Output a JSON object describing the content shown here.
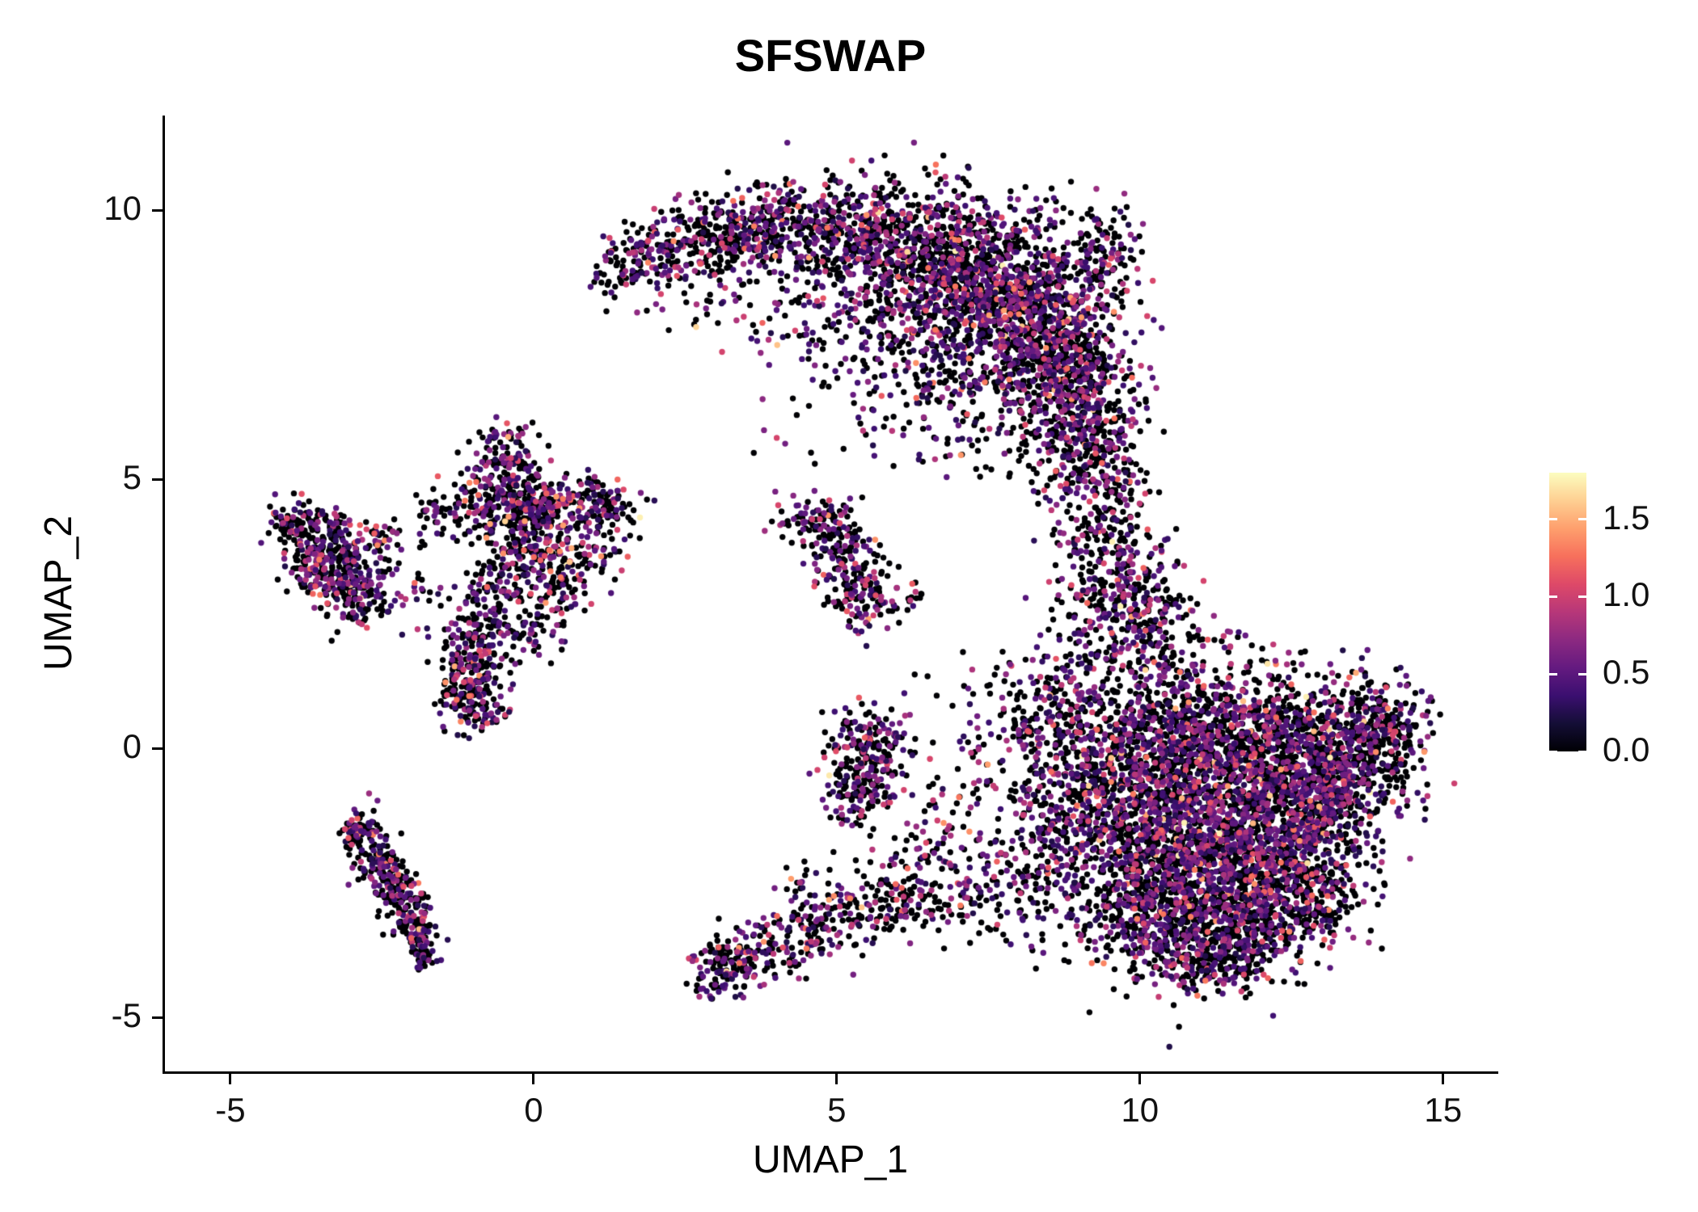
{
  "title": "SFSWAP",
  "colors": {
    "background": "#ffffff",
    "axis": "#000000",
    "text": "#111111"
  },
  "chart_data": {
    "type": "scatter",
    "title": "SFSWAP",
    "xlabel": "UMAP_1",
    "ylabel": "UMAP_2",
    "xlim": [
      -6.08,
      15.87
    ],
    "ylim": [
      -6.0,
      11.76
    ],
    "x_ticks": [
      -5,
      0,
      5,
      10,
      15
    ],
    "y_ticks": [
      -5,
      0,
      5,
      10
    ],
    "grid": false,
    "legend": {
      "position": "right",
      "vmin": 0.0,
      "vmax": 1.8,
      "ticks": [
        {
          "label": "1.5",
          "value": 1.5
        },
        {
          "label": "1.0",
          "value": 1.0
        },
        {
          "label": "0.5",
          "value": 0.5
        },
        {
          "label": "0.0",
          "value": 0.0
        }
      ]
    },
    "colormap": {
      "name": "magma",
      "stops": [
        {
          "t": 0.0,
          "hex": "#000004"
        },
        {
          "t": 0.1,
          "hex": "#140e36"
        },
        {
          "t": 0.2,
          "hex": "#3b0f70"
        },
        {
          "t": 0.3,
          "hex": "#641a80"
        },
        {
          "t": 0.4,
          "hex": "#8c2981"
        },
        {
          "t": 0.5,
          "hex": "#b73779"
        },
        {
          "t": 0.6,
          "hex": "#de4968"
        },
        {
          "t": 0.7,
          "hex": "#f7705c"
        },
        {
          "t": 0.8,
          "hex": "#fe9f6d"
        },
        {
          "t": 0.9,
          "hex": "#fecf92"
        },
        {
          "t": 1.0,
          "hex": "#fcfdbf"
        }
      ]
    },
    "point": {
      "radius": 3.7,
      "seed": 42
    },
    "expression": {
      "p_zero": 0.55,
      "base": 0.22,
      "spread": 0.5,
      "max": 1.75
    },
    "clusters_format": [
      "cx",
      "cy",
      "sx",
      "sy",
      "n"
    ],
    "clusters": [
      [
        1.4,
        8.9,
        0.25,
        0.35,
        60
      ],
      [
        2.0,
        9.2,
        0.3,
        0.35,
        90
      ],
      [
        2.7,
        9.4,
        0.35,
        0.4,
        120
      ],
      [
        3.4,
        9.6,
        0.4,
        0.4,
        140
      ],
      [
        4.1,
        9.7,
        0.4,
        0.45,
        150
      ],
      [
        4.9,
        9.6,
        0.45,
        0.5,
        170
      ],
      [
        5.6,
        9.4,
        0.5,
        0.55,
        220
      ],
      [
        6.3,
        9.0,
        0.6,
        0.7,
        380
      ],
      [
        7.1,
        8.8,
        0.6,
        0.75,
        450
      ],
      [
        7.9,
        8.4,
        0.6,
        0.8,
        480
      ],
      [
        8.5,
        7.7,
        0.55,
        0.8,
        420
      ],
      [
        8.9,
        6.9,
        0.5,
        0.75,
        350
      ],
      [
        9.1,
        6.1,
        0.4,
        0.6,
        220
      ],
      [
        9.5,
        9.2,
        0.3,
        0.5,
        110
      ],
      [
        3.5,
        8.3,
        0.8,
        0.5,
        60
      ],
      [
        5.0,
        7.9,
        0.8,
        0.6,
        80
      ],
      [
        6.3,
        7.3,
        0.7,
        0.6,
        120
      ],
      [
        7.3,
        6.7,
        0.6,
        0.5,
        100
      ],
      [
        9.3,
        5.0,
        0.35,
        0.5,
        70
      ],
      [
        9.5,
        4.2,
        0.4,
        0.5,
        90
      ],
      [
        9.6,
        3.4,
        0.45,
        0.5,
        110
      ],
      [
        9.7,
        2.6,
        0.5,
        0.5,
        130
      ],
      [
        8.8,
        4.6,
        0.3,
        0.7,
        40
      ],
      [
        10.0,
        2.4,
        0.6,
        0.5,
        100
      ],
      [
        10.2,
        1.6,
        0.8,
        0.5,
        150
      ],
      [
        10.0,
        0.3,
        0.8,
        0.7,
        300
      ],
      [
        11.0,
        0.2,
        0.8,
        0.7,
        350
      ],
      [
        12.0,
        0.3,
        0.8,
        0.6,
        320
      ],
      [
        12.9,
        0.2,
        0.7,
        0.6,
        280
      ],
      [
        13.7,
        0.3,
        0.5,
        0.5,
        180
      ],
      [
        14.2,
        0.4,
        0.3,
        0.4,
        90
      ],
      [
        9.5,
        -0.8,
        0.7,
        0.7,
        250
      ],
      [
        10.4,
        -1.0,
        0.8,
        0.8,
        400
      ],
      [
        11.4,
        -1.0,
        0.8,
        0.8,
        420
      ],
      [
        12.4,
        -1.0,
        0.8,
        0.7,
        380
      ],
      [
        13.3,
        -0.8,
        0.6,
        0.6,
        250
      ],
      [
        9.8,
        -2.2,
        0.7,
        0.7,
        300
      ],
      [
        10.8,
        -2.3,
        0.8,
        0.7,
        380
      ],
      [
        11.8,
        -2.3,
        0.8,
        0.7,
        350
      ],
      [
        12.7,
        -2.0,
        0.6,
        0.6,
        250
      ],
      [
        10.3,
        -3.3,
        0.6,
        0.5,
        200
      ],
      [
        11.2,
        -3.4,
        0.7,
        0.5,
        220
      ],
      [
        12.0,
        -3.2,
        0.6,
        0.5,
        180
      ],
      [
        12.8,
        -2.9,
        0.4,
        0.4,
        100
      ],
      [
        10.8,
        -4.0,
        0.5,
        0.3,
        90
      ],
      [
        11.6,
        -3.9,
        0.4,
        0.3,
        70
      ],
      [
        8.7,
        -1.5,
        0.5,
        0.8,
        120
      ],
      [
        8.3,
        -2.3,
        0.4,
        0.6,
        80
      ],
      [
        8.0,
        0.5,
        0.5,
        0.6,
        90
      ],
      [
        8.6,
        1.0,
        0.5,
        0.5,
        90
      ],
      [
        8.9,
        0.0,
        0.4,
        0.5,
        60
      ],
      [
        7.3,
        -0.5,
        0.6,
        0.8,
        60
      ],
      [
        7.0,
        -1.8,
        0.5,
        0.6,
        50
      ],
      [
        7.8,
        -2.8,
        0.5,
        0.4,
        45
      ],
      [
        6.7,
        -2.7,
        0.5,
        0.4,
        50
      ],
      [
        6.0,
        -1.9,
        0.5,
        0.5,
        35
      ],
      [
        5.4,
        -0.3,
        0.35,
        0.5,
        150
      ],
      [
        5.7,
        0.1,
        0.3,
        0.35,
        80
      ],
      [
        5.3,
        -0.9,
        0.3,
        0.3,
        60
      ],
      [
        3.1,
        -4.1,
        0.25,
        0.3,
        100
      ],
      [
        3.6,
        -3.9,
        0.3,
        0.25,
        70
      ],
      [
        4.2,
        -3.6,
        0.35,
        0.3,
        70
      ],
      [
        4.9,
        -3.3,
        0.35,
        0.3,
        60
      ],
      [
        5.6,
        -3.0,
        0.35,
        0.3,
        60
      ],
      [
        6.2,
        -2.8,
        0.3,
        0.25,
        50
      ],
      [
        4.5,
        -2.9,
        0.4,
        0.3,
        40
      ],
      [
        5.2,
        3.2,
        0.3,
        0.45,
        130
      ],
      [
        5.5,
        2.7,
        0.25,
        0.3,
        60
      ],
      [
        4.9,
        4.0,
        0.3,
        0.25,
        50
      ],
      [
        4.4,
        4.2,
        0.3,
        0.2,
        40
      ],
      [
        5.0,
        4.35,
        0.2,
        0.15,
        30
      ],
      [
        6.3,
        2.9,
        0.15,
        0.15,
        12
      ],
      [
        -3.9,
        4.2,
        0.25,
        0.25,
        80
      ],
      [
        -3.5,
        4.0,
        0.3,
        0.3,
        90
      ],
      [
        -3.2,
        3.5,
        0.3,
        0.35,
        110
      ],
      [
        -3.0,
        3.0,
        0.3,
        0.3,
        90
      ],
      [
        -2.8,
        2.7,
        0.25,
        0.2,
        60
      ],
      [
        -3.6,
        3.3,
        0.25,
        0.3,
        60
      ],
      [
        -2.5,
        3.9,
        0.2,
        0.25,
        30
      ],
      [
        -0.6,
        4.6,
        0.35,
        0.35,
        130
      ],
      [
        -0.1,
        4.4,
        0.35,
        0.35,
        120
      ],
      [
        0.6,
        4.5,
        0.4,
        0.3,
        110
      ],
      [
        1.2,
        4.5,
        0.35,
        0.25,
        80
      ],
      [
        -0.5,
        5.2,
        0.3,
        0.3,
        70
      ],
      [
        -0.4,
        5.7,
        0.2,
        0.25,
        40
      ],
      [
        0.2,
        3.8,
        0.4,
        0.4,
        90
      ],
      [
        -0.3,
        3.4,
        0.35,
        0.35,
        80
      ],
      [
        0.3,
        3.0,
        0.35,
        0.35,
        80
      ],
      [
        -0.6,
        2.9,
        0.3,
        0.3,
        60
      ],
      [
        -0.8,
        2.3,
        0.3,
        0.35,
        70
      ],
      [
        -1.0,
        1.7,
        0.28,
        0.3,
        80
      ],
      [
        -1.1,
        1.2,
        0.25,
        0.3,
        90
      ],
      [
        -1.0,
        0.8,
        0.3,
        0.25,
        80
      ],
      [
        0.0,
        2.2,
        0.3,
        0.3,
        50
      ],
      [
        1.1,
        3.6,
        0.3,
        0.3,
        40
      ],
      [
        -1.3,
        4.3,
        0.3,
        0.3,
        40
      ],
      [
        -1.7,
        4.5,
        0.15,
        0.2,
        20
      ],
      [
        -2.0,
        3.1,
        0.3,
        0.4,
        25
      ],
      [
        -2.8,
        -1.5,
        0.15,
        0.2,
        40
      ],
      [
        -2.6,
        -1.9,
        0.2,
        0.25,
        60
      ],
      [
        -2.4,
        -2.3,
        0.2,
        0.25,
        70
      ],
      [
        -2.2,
        -2.7,
        0.18,
        0.25,
        60
      ],
      [
        -2.0,
        -3.1,
        0.15,
        0.25,
        60
      ],
      [
        -1.9,
        -3.5,
        0.12,
        0.2,
        50
      ],
      [
        -1.8,
        -3.8,
        0.1,
        0.15,
        35
      ],
      [
        -3.0,
        -1.6,
        0.12,
        0.15,
        25
      ],
      [
        5.8,
        6.3,
        0.8,
        0.6,
        18
      ],
      [
        4.4,
        5.6,
        0.5,
        0.4,
        10
      ],
      [
        7.0,
        5.6,
        0.4,
        0.5,
        20
      ],
      [
        8.3,
        5.4,
        0.3,
        0.4,
        25
      ]
    ]
  }
}
